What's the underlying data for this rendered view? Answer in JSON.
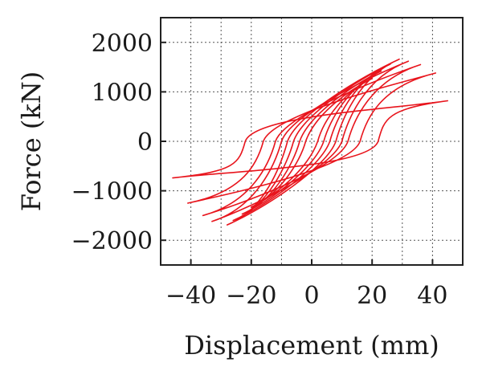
{
  "chart_data": {
    "type": "line",
    "title": "",
    "xlabel": "Displacement (mm)",
    "ylabel": "Force (kN)",
    "xlim": [
      -50,
      50
    ],
    "ylim": [
      -2500,
      2500
    ],
    "x_ticks": [
      -40,
      -20,
      0,
      20,
      40
    ],
    "y_ticks": [
      -2000,
      -1000,
      0,
      1000,
      2000
    ],
    "x_tick_labels": [
      "−40",
      "−20",
      "0",
      "20",
      "40"
    ],
    "y_tick_labels": [
      "−2000",
      "−1000",
      "0",
      "1000",
      "2000"
    ],
    "grid": true,
    "legend": "none",
    "color": "#e8141c",
    "series": [
      {
        "peak_pos": {
          "x": 20,
          "y": 1270
        },
        "peak_neg": {
          "x": -20,
          "y": -1330
        },
        "zero_force_disp": 2
      },
      {
        "peak_pos": {
          "x": 23,
          "y": 1420
        },
        "peak_neg": {
          "x": -23,
          "y": -1470
        },
        "zero_force_disp": 4
      },
      {
        "peak_pos": {
          "x": 26,
          "y": 1560
        },
        "peak_neg": {
          "x": -26,
          "y": -1600
        },
        "zero_force_disp": 6
      },
      {
        "peak_pos": {
          "x": 29,
          "y": 1660
        },
        "peak_neg": {
          "x": -28,
          "y": -1690
        },
        "zero_force_disp": 8
      },
      {
        "peak_pos": {
          "x": 32,
          "y": 1620
        },
        "peak_neg": {
          "x": -33,
          "y": -1620
        },
        "zero_force_disp": 10
      },
      {
        "peak_pos": {
          "x": 36,
          "y": 1550
        },
        "peak_neg": {
          "x": -36,
          "y": -1500
        },
        "zero_force_disp": 12
      },
      {
        "peak_pos": {
          "x": 41,
          "y": 1380
        },
        "peak_neg": {
          "x": -41,
          "y": -1250
        },
        "zero_force_disp": 16
      },
      {
        "peak_pos": {
          "x": 45,
          "y": 820
        },
        "peak_neg": {
          "x": -46,
          "y": -740
        },
        "zero_force_disp": 22
      }
    ]
  }
}
